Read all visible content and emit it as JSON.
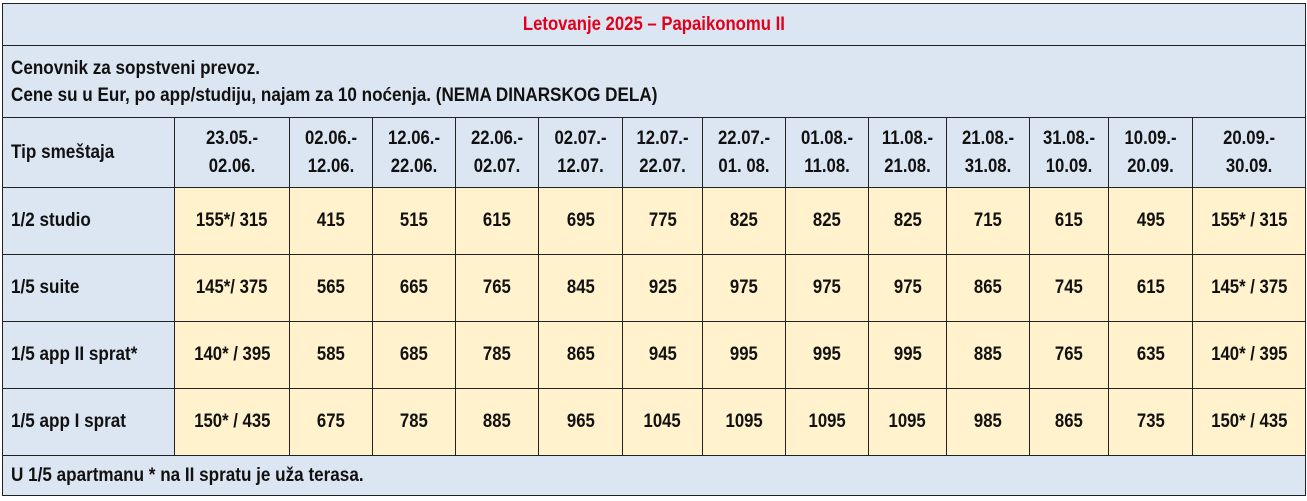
{
  "title": "Letovanje 2025 – Papaikonomu II",
  "notes": [
    "Cenovnik za sopstveni prevoz.",
    "Cene su u Eur, po app/studiju, najam za 10 noćenja. (NEMA DINARSKOG DELA)"
  ],
  "header": {
    "type_label": "Tip smeštaja",
    "periods": [
      [
        "23.05.-",
        "02.06."
      ],
      [
        "02.06.-",
        "12.06."
      ],
      [
        "12.06.-",
        "22.06."
      ],
      [
        "22.06.-",
        "02.07."
      ],
      [
        "02.07.-",
        "12.07."
      ],
      [
        "12.07.-",
        "22.07."
      ],
      [
        "22.07.-",
        "01. 08."
      ],
      [
        "01.08.-",
        "11.08."
      ],
      [
        "11.08.-",
        "21.08."
      ],
      [
        "21.08.-",
        "31.08."
      ],
      [
        "31.08.-",
        "10.09."
      ],
      [
        "10.09.-",
        "20.09."
      ],
      [
        "20.09.-",
        "30.09."
      ]
    ]
  },
  "rows": [
    {
      "type": "1/2 studio",
      "prices": [
        "155*/ 315",
        "415",
        "515",
        "615",
        "695",
        "775",
        "825",
        "825",
        "825",
        "715",
        "615",
        "495",
        "155* / 315"
      ]
    },
    {
      "type": "1/5 suite",
      "prices": [
        "145*/ 375",
        "565",
        "665",
        "765",
        "845",
        "925",
        "975",
        "975",
        "975",
        "865",
        "745",
        "615",
        "145* / 375"
      ]
    },
    {
      "type": "1/5 app II sprat*",
      "prices": [
        "140* / 395",
        "585",
        "685",
        "785",
        "865",
        "945",
        "995",
        "995",
        "995",
        "885",
        "765",
        "635",
        "140* / 395"
      ]
    },
    {
      "type": "1/5 app I sprat",
      "prices": [
        "150* / 435",
        "675",
        "785",
        "885",
        "965",
        "1045",
        "1095",
        "1095",
        "1095",
        "985",
        "865",
        "735",
        "150* / 435"
      ]
    }
  ],
  "footnote": "U 1/5 apartmanu * na II spratu je uža terasa.",
  "colors": {
    "title_red": "#e0001b",
    "header_blue": "#dce6f2",
    "cell_yellow": "#fff2cc",
    "border": "#222222"
  }
}
